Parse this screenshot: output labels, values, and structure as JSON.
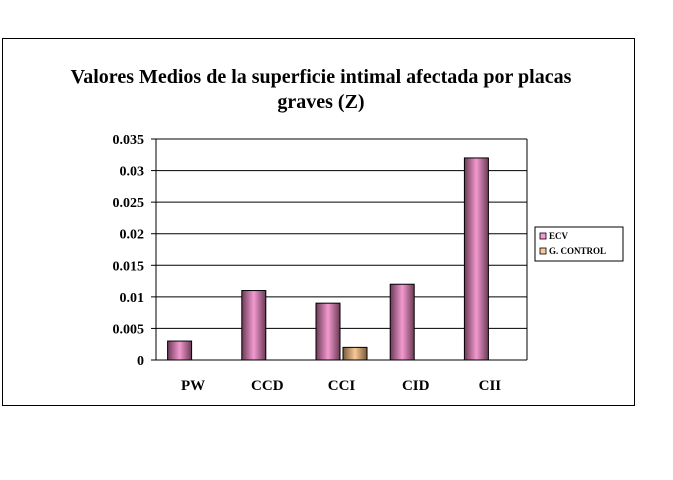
{
  "chart_data": {
    "type": "bar",
    "title": "Valores Medios de la superficie intimal afectada por placas graves (Z)",
    "title_lines": [
      "Valores Medios de la superficie intimal afectada por placas",
      "graves (Z)"
    ],
    "categories": [
      "PW",
      "CCD",
      "CCI",
      "CID",
      "CII"
    ],
    "series": [
      {
        "name": "ECV",
        "values": [
          0.003,
          0.011,
          0.009,
          0.012,
          0.032
        ],
        "color": "#f39ad0",
        "edge_color": "#6b3a55"
      },
      {
        "name": "G. CONTROL",
        "values": [
          0,
          0,
          0.002,
          0,
          0
        ],
        "color": "#f9c896",
        "edge_color": "#7a5a3a"
      }
    ],
    "yticks": [
      "0",
      "0.005",
      "0.01",
      "0.015",
      "0.02",
      "0.025",
      "0.03",
      "0.035"
    ],
    "ylim": [
      0,
      0.035
    ],
    "xlabel": "",
    "ylabel": "",
    "grid": true,
    "legend_position": "right"
  }
}
